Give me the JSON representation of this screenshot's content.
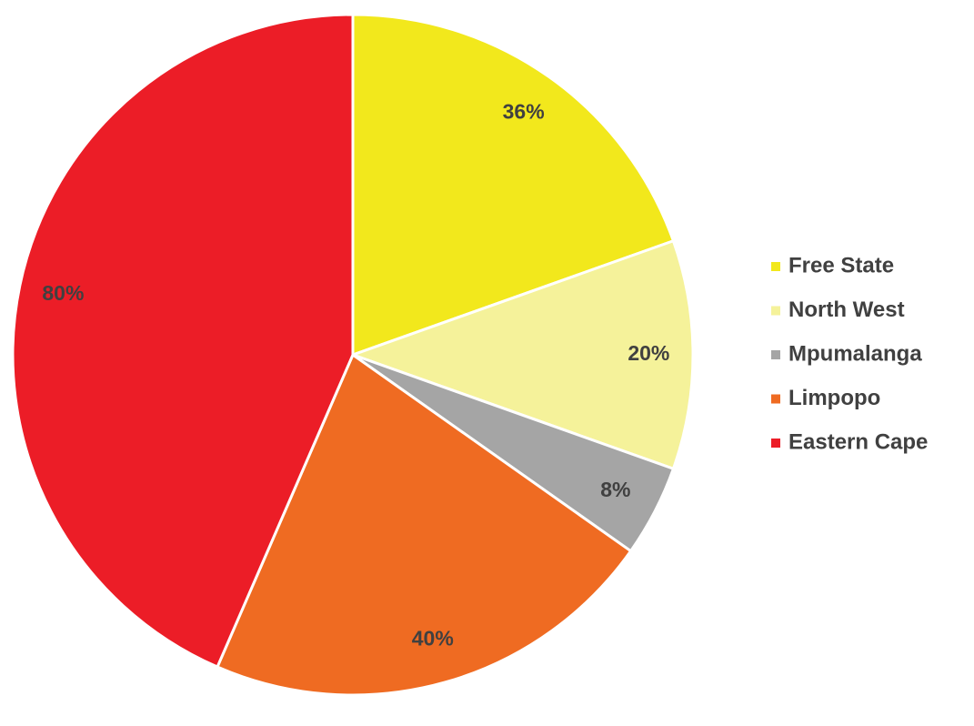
{
  "chart_data": {
    "type": "pie",
    "categories": [
      "Free State",
      "North West",
      "Mpumalanga",
      "Limpopo",
      "Eastern Cape"
    ],
    "values": [
      36,
      20,
      8,
      40,
      80
    ],
    "value_labels": [
      "36%",
      "20%",
      "8%",
      "40%",
      "80%"
    ],
    "colors": [
      "#f2e81c",
      "#f5f29a",
      "#a5a5a5",
      "#ef6b22",
      "#ec1d27"
    ],
    "legend": "right"
  }
}
